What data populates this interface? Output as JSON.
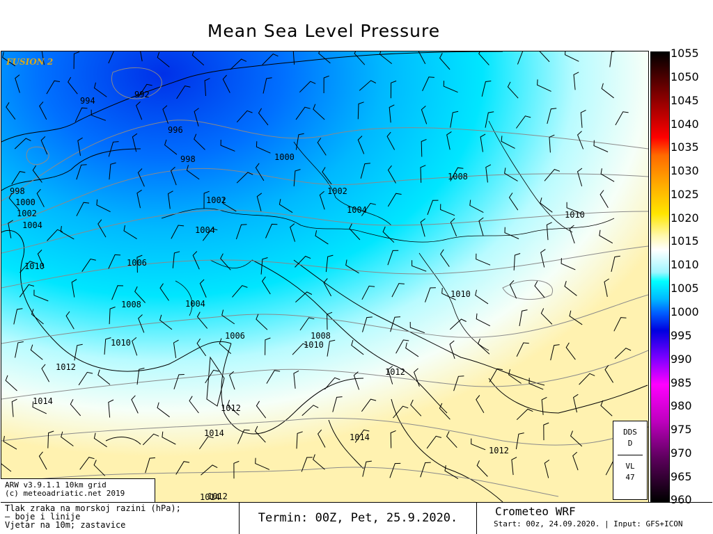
{
  "title": "Mean Sea Level Pressure",
  "watermark": "FUSION 2",
  "model_info": [
    "ARW v3.9.1.1 10km grid",
    "(c) meteoadriatic.net 2019"
  ],
  "dds_box": {
    "top": "DDS",
    "mid": "D",
    "bottom1": "VL",
    "bottom2": "47"
  },
  "colorbar": {
    "labels": [
      "1055",
      "1050",
      "1045",
      "1040",
      "1035",
      "1030",
      "1025",
      "1020",
      "1015",
      "1010",
      "1005",
      "1000",
      "995",
      "990",
      "985",
      "980",
      "975",
      "970",
      "965",
      "960"
    ]
  },
  "legend_text": [
    "Tlak zraka na morskoj razini (hPa);",
    "— boje i linije",
    "Vjetar na 10m; zastavice"
  ],
  "run_time": "Termin: 00Z, Pet, 25.9.2020.",
  "brand": "Crometeo WRF",
  "start_info": "Start: 00z, 24.09.2020. | Input: GFS+ICON",
  "isobar_labels": [
    "994",
    "992",
    "996",
    "998",
    "998",
    "1000",
    "1002",
    "1004",
    "1000",
    "1002",
    "1002",
    "1004",
    "1004",
    "1008",
    "1010",
    "1010",
    "1006",
    "1008",
    "1004",
    "1010",
    "1010",
    "1012",
    "1014",
    "1012",
    "1006",
    "1008",
    "1010",
    "1012",
    "1014",
    "1012",
    "1014",
    "1014",
    "1012"
  ],
  "colors": {
    "low": "#0044ff",
    "mid": "#00e6ff",
    "high": "#fff6c0"
  }
}
